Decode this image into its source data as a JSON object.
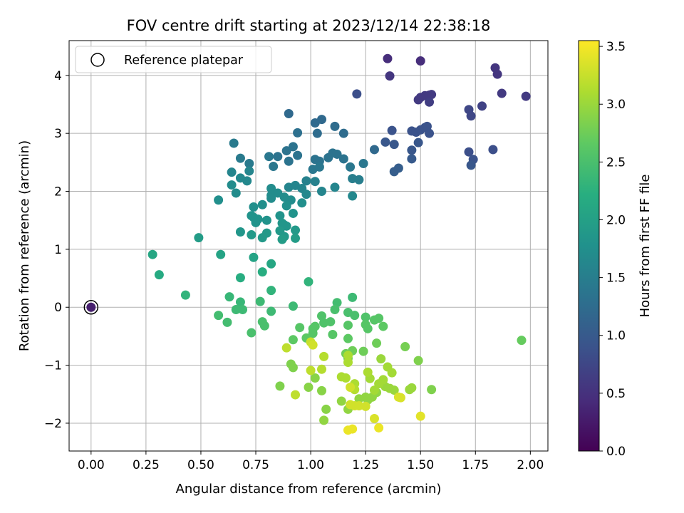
{
  "chart_data": {
    "type": "scatter",
    "title": "FOV centre drift starting at 2023/12/14 22:38:18",
    "xlabel": "Angular distance from reference (arcmin)",
    "ylabel": "Rotation from reference (arcmin)",
    "xlim": [
      -0.1,
      2.08
    ],
    "ylim": [
      -2.48,
      4.6
    ],
    "xticks": [
      0.0,
      0.25,
      0.5,
      0.75,
      1.0,
      1.25,
      1.5,
      1.75,
      2.0
    ],
    "xtick_labels": [
      "0.00",
      "0.25",
      "0.50",
      "0.75",
      "1.00",
      "1.25",
      "1.50",
      "1.75",
      "2.00"
    ],
    "yticks": [
      -2,
      -1,
      0,
      1,
      2,
      3,
      4
    ],
    "ytick_labels": [
      "−2",
      "−1",
      "0",
      "1",
      "2",
      "3",
      "4"
    ],
    "grid": true,
    "legend": {
      "position": "top-left",
      "entries": [
        "Reference platepar"
      ]
    },
    "colorbar": {
      "label": "Hours from first FF file",
      "colormap": "viridis",
      "range": [
        0.0,
        3.55
      ],
      "ticks": [
        0.0,
        0.5,
        1.0,
        1.5,
        2.0,
        2.5,
        3.0,
        3.5
      ],
      "tick_labels": [
        "0.0",
        "0.5",
        "1.0",
        "1.5",
        "2.0",
        "2.5",
        "3.0",
        "3.5"
      ]
    },
    "reference_point": {
      "x": 0.0,
      "y": 0.0,
      "hours": 0.3
    },
    "points": [
      [
        1.35,
        4.29,
        0.45
      ],
      [
        1.5,
        4.25,
        0.45
      ],
      [
        1.36,
        3.99,
        0.55
      ],
      [
        1.84,
        4.13,
        0.55
      ],
      [
        1.85,
        4.02,
        0.55
      ],
      [
        1.49,
        3.58,
        0.6
      ],
      [
        1.52,
        3.65,
        0.6
      ],
      [
        1.5,
        3.62,
        0.6
      ],
      [
        1.54,
        3.66,
        0.6
      ],
      [
        1.55,
        3.67,
        0.6
      ],
      [
        1.54,
        3.54,
        0.65
      ],
      [
        1.87,
        3.69,
        0.6
      ],
      [
        1.98,
        3.64,
        0.6
      ],
      [
        1.21,
        3.68,
        0.85
      ],
      [
        1.78,
        3.47,
        0.7
      ],
      [
        1.72,
        3.41,
        0.75
      ],
      [
        1.73,
        3.3,
        0.75
      ],
      [
        1.37,
        3.05,
        0.9
      ],
      [
        1.46,
        3.04,
        0.9
      ],
      [
        1.48,
        3.02,
        0.9
      ],
      [
        1.5,
        3.06,
        0.9
      ],
      [
        1.52,
        3.1,
        0.9
      ],
      [
        1.53,
        3.12,
        0.9
      ],
      [
        1.54,
        3.0,
        0.9
      ],
      [
        1.49,
        2.84,
        0.95
      ],
      [
        1.34,
        2.85,
        0.95
      ],
      [
        1.38,
        2.81,
        0.95
      ],
      [
        1.46,
        2.71,
        0.95
      ],
      [
        1.46,
        2.56,
        1.0
      ],
      [
        1.72,
        2.68,
        0.85
      ],
      [
        1.83,
        2.72,
        0.85
      ],
      [
        1.74,
        2.55,
        0.9
      ],
      [
        1.73,
        2.45,
        0.95
      ],
      [
        1.29,
        2.72,
        1.2
      ],
      [
        1.38,
        2.34,
        1.05
      ],
      [
        1.4,
        2.4,
        1.05
      ],
      [
        0.9,
        3.34,
        1.2
      ],
      [
        1.02,
        3.18,
        1.2
      ],
      [
        1.05,
        3.24,
        1.2
      ],
      [
        1.11,
        3.12,
        1.25
      ],
      [
        1.03,
        3.0,
        1.25
      ],
      [
        1.15,
        3.0,
        1.25
      ],
      [
        0.94,
        3.01,
        1.3
      ],
      [
        0.89,
        2.7,
        1.35
      ],
      [
        0.92,
        2.77,
        1.35
      ],
      [
        0.94,
        2.62,
        1.35
      ],
      [
        0.9,
        2.52,
        1.35
      ],
      [
        0.85,
        2.6,
        1.35
      ],
      [
        0.81,
        2.6,
        1.4
      ],
      [
        0.83,
        2.43,
        1.4
      ],
      [
        0.68,
        2.57,
        1.45
      ],
      [
        0.72,
        2.48,
        1.45
      ],
      [
        0.65,
        2.83,
        1.45
      ],
      [
        1.02,
        2.55,
        1.35
      ],
      [
        1.04,
        2.52,
        1.35
      ],
      [
        1.08,
        2.58,
        1.35
      ],
      [
        1.1,
        2.66,
        1.35
      ],
      [
        1.12,
        2.64,
        1.35
      ],
      [
        1.15,
        2.56,
        1.35
      ],
      [
        1.18,
        2.42,
        1.4
      ],
      [
        1.24,
        2.48,
        1.4
      ],
      [
        1.22,
        2.2,
        1.5
      ],
      [
        1.19,
        2.22,
        1.5
      ],
      [
        1.01,
        2.38,
        1.4
      ],
      [
        1.04,
        2.42,
        1.4
      ],
      [
        0.98,
        2.18,
        1.55
      ],
      [
        1.02,
        2.17,
        1.55
      ],
      [
        1.05,
        2.0,
        1.6
      ],
      [
        1.11,
        2.07,
        1.6
      ],
      [
        1.19,
        1.92,
        1.65
      ],
      [
        0.9,
        2.07,
        1.6
      ],
      [
        0.93,
        2.1,
        1.6
      ],
      [
        0.96,
        2.05,
        1.6
      ],
      [
        0.98,
        1.95,
        1.65
      ],
      [
        0.72,
        2.35,
        1.6
      ],
      [
        0.64,
        2.33,
        1.6
      ],
      [
        0.68,
        2.23,
        1.65
      ],
      [
        0.71,
        2.18,
        1.65
      ],
      [
        0.64,
        2.11,
        1.7
      ],
      [
        0.66,
        1.97,
        1.7
      ],
      [
        0.82,
        2.05,
        1.7
      ],
      [
        0.82,
        1.93,
        1.7
      ],
      [
        0.85,
        1.97,
        1.7
      ],
      [
        0.88,
        1.9,
        1.7
      ],
      [
        0.82,
        1.88,
        1.7
      ],
      [
        0.91,
        1.85,
        1.7
      ],
      [
        0.89,
        1.75,
        1.75
      ],
      [
        0.96,
        1.8,
        1.75
      ],
      [
        0.58,
        1.85,
        1.75
      ],
      [
        0.74,
        1.73,
        1.75
      ],
      [
        0.78,
        1.77,
        1.75
      ],
      [
        0.74,
        1.55,
        1.8
      ],
      [
        0.73,
        1.58,
        1.8
      ],
      [
        0.76,
        1.52,
        1.8
      ],
      [
        0.75,
        1.46,
        1.8
      ],
      [
        0.8,
        1.5,
        1.8
      ],
      [
        0.86,
        1.58,
        1.8
      ],
      [
        0.92,
        1.62,
        1.8
      ],
      [
        0.87,
        1.45,
        1.85
      ],
      [
        0.88,
        1.42,
        1.85
      ],
      [
        0.89,
        1.4,
        1.85
      ],
      [
        0.68,
        1.3,
        1.85
      ],
      [
        0.73,
        1.25,
        1.9
      ],
      [
        0.78,
        1.2,
        1.9
      ],
      [
        0.8,
        1.28,
        1.9
      ],
      [
        0.86,
        1.32,
        1.9
      ],
      [
        0.88,
        1.22,
        1.9
      ],
      [
        0.87,
        1.17,
        1.95
      ],
      [
        0.93,
        1.33,
        1.9
      ],
      [
        0.93,
        1.19,
        1.95
      ],
      [
        0.49,
        1.2,
        1.95
      ],
      [
        0.28,
        0.91,
        2.1
      ],
      [
        0.31,
        0.56,
        2.15
      ],
      [
        0.59,
        0.91,
        2.05
      ],
      [
        0.74,
        0.86,
        2.05
      ],
      [
        0.82,
        0.75,
        2.1
      ],
      [
        0.68,
        0.51,
        2.2
      ],
      [
        0.78,
        0.61,
        2.2
      ],
      [
        0.82,
        0.29,
        2.3
      ],
      [
        0.43,
        0.21,
        2.3
      ],
      [
        0.63,
        0.18,
        2.35
      ],
      [
        0.68,
        0.09,
        2.35
      ],
      [
        0.66,
        -0.04,
        2.4
      ],
      [
        0.69,
        -0.04,
        2.4
      ],
      [
        0.82,
        -0.07,
        2.4
      ],
      [
        0.77,
        0.1,
        2.4
      ],
      [
        0.58,
        -0.14,
        2.45
      ],
      [
        0.62,
        -0.26,
        2.45
      ],
      [
        0.73,
        -0.44,
        2.5
      ],
      [
        0.78,
        -0.25,
        2.5
      ],
      [
        0.79,
        -0.32,
        2.5
      ],
      [
        0.92,
        0.02,
        2.4
      ],
      [
        0.99,
        0.44,
        2.3
      ],
      [
        1.12,
        0.08,
        2.45
      ],
      [
        1.11,
        -0.04,
        2.5
      ],
      [
        1.19,
        0.17,
        2.4
      ],
      [
        1.2,
        -0.14,
        2.5
      ],
      [
        1.05,
        -0.15,
        2.55
      ],
      [
        1.06,
        -0.27,
        2.55
      ],
      [
        1.09,
        -0.25,
        2.55
      ],
      [
        1.02,
        -0.33,
        2.6
      ],
      [
        1.01,
        -0.37,
        2.6
      ],
      [
        1.01,
        -0.45,
        2.6
      ],
      [
        1.1,
        -0.47,
        2.6
      ],
      [
        0.98,
        -0.53,
        2.65
      ],
      [
        0.95,
        -0.35,
        2.6
      ],
      [
        0.92,
        -0.56,
        2.65
      ],
      [
        1.17,
        -0.09,
        2.5
      ],
      [
        1.17,
        -0.31,
        2.6
      ],
      [
        1.17,
        -0.54,
        2.65
      ],
      [
        1.25,
        -0.17,
        2.55
      ],
      [
        1.25,
        -0.3,
        2.6
      ],
      [
        1.26,
        -0.37,
        2.6
      ],
      [
        1.29,
        -0.22,
        2.6
      ],
      [
        1.31,
        -0.19,
        2.6
      ],
      [
        1.33,
        -0.33,
        2.65
      ],
      [
        1.24,
        -0.76,
        2.75
      ],
      [
        1.19,
        -0.75,
        2.75
      ],
      [
        1.16,
        -0.8,
        2.75
      ],
      [
        1.17,
        -0.88,
        2.8
      ],
      [
        1.3,
        -0.62,
        2.75
      ],
      [
        1.43,
        -0.68,
        2.8
      ],
      [
        1.49,
        -0.92,
        2.85
      ],
      [
        1.96,
        -0.57,
        2.7
      ],
      [
        1.55,
        -1.42,
        2.85
      ],
      [
        0.91,
        -0.98,
        2.85
      ],
      [
        0.92,
        -1.04,
        2.85
      ],
      [
        0.86,
        -1.36,
        2.85
      ],
      [
        0.99,
        -1.38,
        2.9
      ],
      [
        1.02,
        -1.22,
        2.9
      ],
      [
        1.05,
        -1.44,
        2.9
      ],
      [
        1.07,
        -1.76,
        2.9
      ],
      [
        1.14,
        -1.62,
        2.95
      ],
      [
        1.17,
        -1.76,
        2.95
      ],
      [
        1.06,
        -1.95,
        2.95
      ],
      [
        1.22,
        -1.58,
        2.95
      ],
      [
        1.25,
        -1.55,
        2.95
      ],
      [
        1.26,
        -1.6,
        2.95
      ],
      [
        1.28,
        -1.55,
        2.95
      ],
      [
        1.3,
        -1.47,
        2.95
      ],
      [
        1.34,
        -1.37,
        3.0
      ],
      [
        1.36,
        -1.4,
        3.0
      ],
      [
        1.38,
        -1.43,
        3.0
      ],
      [
        1.45,
        -1.42,
        3.0
      ],
      [
        1.46,
        -1.39,
        3.0
      ],
      [
        1.32,
        -0.89,
        3.0
      ],
      [
        1.35,
        -1.03,
        3.05
      ],
      [
        1.37,
        -1.13,
        3.05
      ],
      [
        1.33,
        -1.25,
        3.05
      ],
      [
        1.31,
        -1.32,
        3.05
      ],
      [
        1.27,
        -1.23,
        3.05
      ],
      [
        1.29,
        -1.43,
        3.05
      ],
      [
        1.2,
        -1.32,
        3.1
      ],
      [
        1.2,
        -1.42,
        3.15
      ],
      [
        1.14,
        -1.2,
        3.1
      ],
      [
        1.16,
        -1.22,
        3.1
      ],
      [
        1.26,
        -1.12,
        3.1
      ],
      [
        1.17,
        -0.83,
        3.1
      ],
      [
        1.17,
        -0.95,
        3.1
      ],
      [
        1.06,
        -0.85,
        3.15
      ],
      [
        1.05,
        -1.07,
        3.15
      ],
      [
        1.0,
        -1.09,
        3.2
      ],
      [
        0.89,
        -0.7,
        3.2
      ],
      [
        0.93,
        -1.51,
        3.2
      ],
      [
        1.0,
        -0.6,
        3.25
      ],
      [
        1.01,
        -0.65,
        3.3
      ],
      [
        1.18,
        -1.38,
        3.3
      ],
      [
        1.18,
        -1.68,
        3.3
      ],
      [
        1.2,
        -1.7,
        3.3
      ],
      [
        1.22,
        -1.7,
        3.3
      ],
      [
        1.25,
        -1.71,
        3.3
      ],
      [
        1.29,
        -1.92,
        3.35
      ],
      [
        1.41,
        -1.56,
        3.35
      ],
      [
        1.4,
        -1.55,
        3.35
      ],
      [
        1.5,
        -1.88,
        3.4
      ],
      [
        1.31,
        -2.08,
        3.45
      ],
      [
        1.17,
        -2.12,
        3.45
      ],
      [
        1.19,
        -2.1,
        3.45
      ]
    ]
  }
}
